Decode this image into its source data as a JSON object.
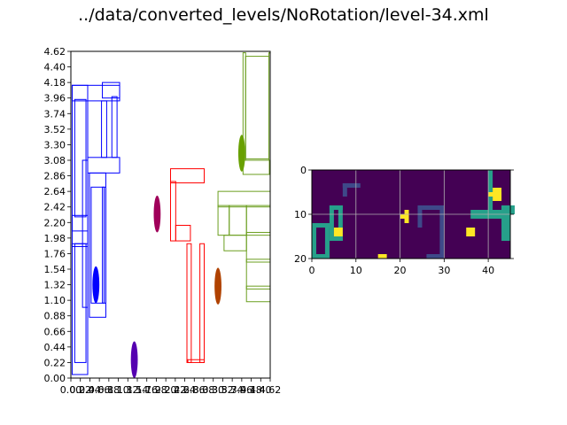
{
  "figure": {
    "title": "../data/converted_levels/NoRotation/level-34.xml"
  },
  "chart_data": [
    {
      "type": "scatter",
      "title": "",
      "xlabel": "",
      "ylabel": "",
      "xlim": [
        0,
        4.62
      ],
      "ylim": [
        0,
        4.62
      ],
      "yticks": [
        "0.00",
        "0.22",
        "0.44",
        "0.66",
        "0.88",
        "1.10",
        "1.32",
        "1.54",
        "1.76",
        "1.98",
        "2.20",
        "2.42",
        "2.64",
        "2.86",
        "3.08",
        "3.30",
        "3.52",
        "3.74",
        "3.96",
        "4.18",
        "4.40",
        "4.62"
      ],
      "grid": false,
      "rects": [
        {
          "group": "blue",
          "color": "#0000ff",
          "x0": 0.03,
          "y0": 0.05,
          "x1": 0.39,
          "y1": 4.14
        },
        {
          "group": "blue",
          "color": "#0000ff",
          "x0": 0.09,
          "y0": 0.22,
          "x1": 0.35,
          "y1": 1.9
        },
        {
          "group": "blue",
          "color": "#0000ff",
          "x0": 0.09,
          "y0": 2.28,
          "x1": 0.35,
          "y1": 3.94
        },
        {
          "group": "blue",
          "color": "#0000ff",
          "x0": 0.03,
          "y0": 2.08,
          "x1": 0.39,
          "y1": 2.3
        },
        {
          "group": "blue",
          "color": "#0000ff",
          "x0": 0.03,
          "y0": 1.86,
          "x1": 0.39,
          "y1": 1.9
        },
        {
          "group": "blue",
          "color": "#0000ff",
          "x0": 0.03,
          "y0": 3.92,
          "x1": 1.13,
          "y1": 4.14
        },
        {
          "group": "blue",
          "color": "#0000ff",
          "x0": 0.27,
          "y0": 1.0,
          "x1": 0.39,
          "y1": 3.08
        },
        {
          "group": "blue",
          "color": "#0000ff",
          "x0": 0.39,
          "y0": 2.9,
          "x1": 1.13,
          "y1": 3.12
        },
        {
          "group": "blue",
          "color": "#0000ff",
          "x0": 0.43,
          "y0": 0.86,
          "x1": 0.81,
          "y1": 2.9
        },
        {
          "group": "blue",
          "color": "#0000ff",
          "x0": 0.47,
          "y0": 1.06,
          "x1": 0.77,
          "y1": 2.7
        },
        {
          "group": "blue",
          "color": "#0000ff",
          "x0": 0.73,
          "y0": 1.06,
          "x1": 0.81,
          "y1": 2.7
        },
        {
          "group": "blue",
          "color": "#0000ff",
          "x0": 0.71,
          "y0": 3.12,
          "x1": 0.83,
          "y1": 3.92
        },
        {
          "group": "blue",
          "color": "#0000ff",
          "x0": 0.73,
          "y0": 3.96,
          "x1": 1.13,
          "y1": 4.18
        },
        {
          "group": "blue",
          "color": "#0000ff",
          "x0": 0.95,
          "y0": 3.12,
          "x1": 1.07,
          "y1": 3.98
        },
        {
          "group": "red",
          "color": "#ff0000",
          "x0": 2.31,
          "y0": 1.94,
          "x1": 2.43,
          "y1": 2.78
        },
        {
          "group": "red",
          "color": "#ff0000",
          "x0": 2.31,
          "y0": 2.76,
          "x1": 3.09,
          "y1": 2.96
        },
        {
          "group": "red",
          "color": "#ff0000",
          "x0": 2.43,
          "y0": 1.94,
          "x1": 2.77,
          "y1": 2.16
        },
        {
          "group": "red",
          "color": "#ff0000",
          "x0": 2.69,
          "y0": 0.22,
          "x1": 2.79,
          "y1": 1.9
        },
        {
          "group": "red",
          "color": "#ff0000",
          "x0": 2.71,
          "y0": 0.22,
          "x1": 3.09,
          "y1": 0.26
        },
        {
          "group": "red",
          "color": "#ff0000",
          "x0": 2.99,
          "y0": 0.22,
          "x1": 3.09,
          "y1": 1.9
        },
        {
          "group": "green",
          "color": "#6b9e1f",
          "x0": 3.99,
          "y0": 2.88,
          "x1": 4.6,
          "y1": 3.08
        },
        {
          "group": "green",
          "color": "#6b9e1f",
          "x0": 4.05,
          "y0": 3.1,
          "x1": 4.59,
          "y1": 4.55
        },
        {
          "group": "green",
          "color": "#6b9e1f",
          "x0": 3.99,
          "y0": 3.08,
          "x1": 4.05,
          "y1": 4.6
        },
        {
          "group": "green",
          "color": "#6b9e1f",
          "x0": 4.59,
          "y0": 3.08,
          "x1": 4.62,
          "y1": 4.6
        },
        {
          "group": "green",
          "color": "#6b9e1f",
          "x0": 3.41,
          "y0": 2.42,
          "x1": 4.62,
          "y1": 2.64
        },
        {
          "group": "green",
          "color": "#6b9e1f",
          "x0": 3.41,
          "y0": 2.02,
          "x1": 3.67,
          "y1": 2.44
        },
        {
          "group": "green",
          "color": "#6b9e1f",
          "x0": 3.67,
          "y0": 2.02,
          "x1": 4.07,
          "y1": 2.44
        },
        {
          "group": "green",
          "color": "#6b9e1f",
          "x0": 3.55,
          "y0": 1.8,
          "x1": 4.07,
          "y1": 2.02
        },
        {
          "group": "green",
          "color": "#6b9e1f",
          "x0": 4.07,
          "y0": 2.02,
          "x1": 4.62,
          "y1": 2.44
        },
        {
          "group": "green",
          "color": "#6b9e1f",
          "x0": 4.07,
          "y0": 1.64,
          "x1": 4.62,
          "y1": 2.06
        },
        {
          "group": "green",
          "color": "#6b9e1f",
          "x0": 4.07,
          "y0": 1.08,
          "x1": 4.62,
          "y1": 1.3
        },
        {
          "group": "green",
          "color": "#6b9e1f",
          "x0": 4.07,
          "y0": 1.26,
          "x1": 4.62,
          "y1": 1.68
        }
      ],
      "ellipses": [
        {
          "color": "#0000ff",
          "cx": 0.58,
          "cy": 1.32,
          "rx": 0.08,
          "ry": 0.26
        },
        {
          "color": "#5500b0",
          "cx": 1.47,
          "cy": 0.26,
          "rx": 0.08,
          "ry": 0.26
        },
        {
          "color": "#a0005a",
          "cx": 2.0,
          "cy": 2.32,
          "rx": 0.08,
          "ry": 0.26
        },
        {
          "color": "#b04200",
          "cx": 3.41,
          "cy": 1.3,
          "rx": 0.08,
          "ry": 0.26
        },
        {
          "color": "#68a000",
          "cx": 3.96,
          "cy": 3.18,
          "rx": 0.08,
          "ry": 0.26
        }
      ]
    },
    {
      "type": "heatmap",
      "title": "",
      "xlabel": "",
      "ylabel": "",
      "xlim": [
        0,
        45
      ],
      "ylim": [
        20,
        0
      ],
      "xticks": [
        "0",
        "10",
        "20",
        "30",
        "40"
      ],
      "yticks": [
        "0",
        "10",
        "20"
      ],
      "grid": true,
      "colormap": "viridis",
      "background_color": "#440154",
      "cells": [
        {
          "v": 0.33,
          "color": "#3e4989",
          "x": 7,
          "y": 3,
          "w": 4,
          "h": 1
        },
        {
          "v": 0.33,
          "color": "#3e4989",
          "x": 7,
          "y": 3,
          "w": 1,
          "h": 3
        },
        {
          "v": 0.33,
          "color": "#3e4989",
          "x": 24,
          "y": 8,
          "w": 6,
          "h": 1
        },
        {
          "v": 0.33,
          "color": "#3e4989",
          "x": 24,
          "y": 8,
          "w": 1,
          "h": 5
        },
        {
          "v": 0.33,
          "color": "#3e4989",
          "x": 29,
          "y": 8,
          "w": 1,
          "h": 12
        },
        {
          "v": 0.33,
          "color": "#3e4989",
          "x": 26,
          "y": 19,
          "w": 4,
          "h": 1
        },
        {
          "v": 0.33,
          "color": "#3e4989",
          "x": 3,
          "y": 16,
          "w": 1,
          "h": 4
        },
        {
          "v": 0.66,
          "color": "#26a08a",
          "x": 0,
          "y": 12,
          "w": 4,
          "h": 1
        },
        {
          "v": 0.66,
          "color": "#26a08a",
          "x": 0,
          "y": 12,
          "w": 1,
          "h": 8
        },
        {
          "v": 0.66,
          "color": "#26a08a",
          "x": 0,
          "y": 19,
          "w": 4,
          "h": 1
        },
        {
          "v": 0.66,
          "color": "#26a08a",
          "x": 3,
          "y": 12,
          "w": 1,
          "h": 8
        },
        {
          "v": 0.66,
          "color": "#26a08a",
          "x": 4,
          "y": 8,
          "w": 3,
          "h": 1
        },
        {
          "v": 0.66,
          "color": "#26a08a",
          "x": 4,
          "y": 8,
          "w": 1,
          "h": 8
        },
        {
          "v": 0.66,
          "color": "#26a08a",
          "x": 6,
          "y": 8,
          "w": 1,
          "h": 8
        },
        {
          "v": 0.66,
          "color": "#26a08a",
          "x": 4,
          "y": 15,
          "w": 3,
          "h": 1
        },
        {
          "v": 0.66,
          "color": "#26a08a",
          "x": 40,
          "y": 0,
          "w": 1,
          "h": 10
        },
        {
          "v": 0.66,
          "color": "#26a08a",
          "x": 36,
          "y": 9,
          "w": 8,
          "h": 2
        },
        {
          "v": 0.66,
          "color": "#26a08a",
          "x": 43,
          "y": 8,
          "w": 3,
          "h": 2
        },
        {
          "v": 0.66,
          "color": "#26a08a",
          "x": 43,
          "y": 8,
          "w": 2,
          "h": 8
        },
        {
          "v": 1.0,
          "color": "#fde725",
          "x": 5,
          "y": 13,
          "w": 2,
          "h": 2
        },
        {
          "v": 1.0,
          "color": "#fde725",
          "x": 15,
          "y": 19,
          "w": 2,
          "h": 1
        },
        {
          "v": 1.0,
          "color": "#fde725",
          "x": 20,
          "y": 10,
          "w": 2,
          "h": 1
        },
        {
          "v": 1.0,
          "color": "#fde725",
          "x": 21,
          "y": 9,
          "w": 1,
          "h": 3
        },
        {
          "v": 1.0,
          "color": "#fde725",
          "x": 35,
          "y": 13,
          "w": 2,
          "h": 2
        },
        {
          "v": 1.0,
          "color": "#fde725",
          "x": 41,
          "y": 4,
          "w": 2,
          "h": 3
        },
        {
          "v": 1.0,
          "color": "#fde725",
          "x": 40,
          "y": 5,
          "w": 3,
          "h": 1
        },
        {
          "v": 1.0,
          "color": "#fde725",
          "x": 42,
          "y": 6,
          "w": 1,
          "h": 1
        }
      ]
    }
  ]
}
